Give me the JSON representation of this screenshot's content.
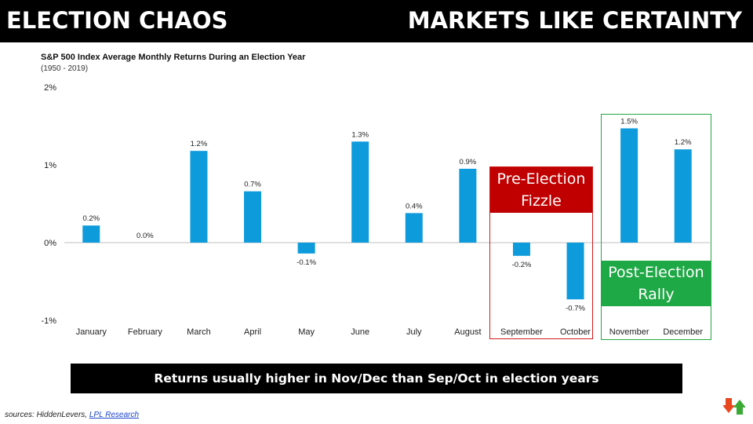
{
  "header": {
    "left_title": "ELECTION CHAOS",
    "right_title": "MARKETS LIKE CERTAINTY"
  },
  "chart_data": {
    "type": "bar",
    "title": "S&P 500 Index Average Monthly Returns During an Election Year",
    "subtitle": "(1950 - 2019)",
    "categories": [
      "January",
      "February",
      "March",
      "April",
      "May",
      "June",
      "July",
      "August",
      "September",
      "October",
      "November",
      "December"
    ],
    "values": [
      0.22,
      0.0,
      1.18,
      0.66,
      -0.14,
      1.3,
      0.38,
      0.95,
      -0.17,
      -0.73,
      1.47,
      1.2
    ],
    "data_labels": [
      "0.2%",
      "0.0%",
      "1.2%",
      "0.7%",
      "-0.1%",
      "1.3%",
      "0.4%",
      "0.9%",
      "-0.2%",
      "-0.7%",
      "1.5%",
      "1.2%"
    ],
    "y_ticks": [
      2,
      1,
      0,
      -1
    ],
    "y_tick_labels": [
      "2%",
      "1%",
      "0%",
      "-1%"
    ],
    "ylim": [
      -1,
      2
    ],
    "xlabel": "",
    "ylabel": "",
    "grid": false,
    "bar_color": "#0e9bdc",
    "zero_line_color": "#bfbfbf"
  },
  "annotations": {
    "pre_election": {
      "lines": [
        "Pre-Election",
        "Fizzle"
      ],
      "color": "#c00000"
    },
    "post_election": {
      "lines": [
        "Post-Election",
        "Rally"
      ],
      "color": "#1fa846"
    }
  },
  "footer": {
    "banner": "Returns usually higher in Nov/Dec than Sep/Oct in election years",
    "sources_prefix": "sources: HiddenLevers, ",
    "sources_link": "LPL Research"
  },
  "logo": {
    "icon": "hiddenlevers-arrows-logo",
    "colors": [
      "#e8461e",
      "#3aaa35"
    ]
  }
}
